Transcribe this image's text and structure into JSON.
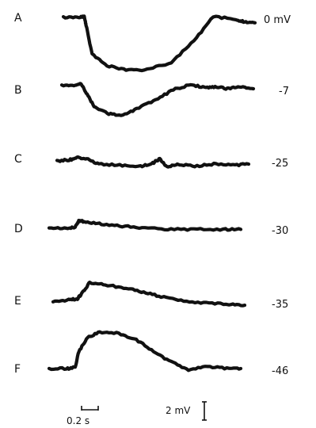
{
  "chart_data": {
    "type": "line",
    "title": "",
    "xlabel": "",
    "ylabel": "",
    "panels": [
      {
        "letter": "A",
        "voltage_label": "0 mV",
        "time_s": [
          0,
          0.18,
          0.24,
          0.26,
          0.33,
          0.5,
          0.72,
          0.96,
          1.24,
          1.5,
          1.72,
          1.98,
          2.08,
          2.2
        ],
        "response_mV": [
          0,
          0,
          0.1,
          -0.7,
          -3.4,
          -4.5,
          -4.9,
          -4.9,
          -4.2,
          -2.2,
          0.1,
          -0.2,
          -0.4,
          -0.5
        ]
      },
      {
        "letter": "B",
        "voltage_label": "-7",
        "time_s": [
          0,
          0.16,
          0.22,
          0.28,
          0.37,
          0.52,
          0.68,
          0.86,
          1.08,
          1.28,
          1.48,
          1.64,
          1.76,
          1.9,
          2.04,
          2.2
        ],
        "response_mV": [
          0.3,
          0.3,
          0.5,
          -0.4,
          -1.6,
          -2.3,
          -2.5,
          -1.9,
          -1.0,
          -0.1,
          0.4,
          0.1,
          0.2,
          0.0,
          0.2,
          0.0
        ]
      },
      {
        "letter": "C",
        "voltage_label": "-25",
        "time_s": [
          0,
          0.14,
          0.24,
          0.34,
          0.48,
          0.72,
          0.96,
          1.1,
          1.18,
          1.26,
          1.38,
          1.58,
          1.8,
          2.02,
          2.2
        ],
        "response_mV": [
          0.0,
          0.1,
          0.3,
          0.2,
          -0.3,
          -0.4,
          -0.5,
          -0.2,
          0.2,
          -0.6,
          -0.3,
          -0.5,
          -0.3,
          -0.4,
          -0.3
        ]
      },
      {
        "letter": "D",
        "voltage_label": "-30",
        "time_s": [
          0,
          0.2,
          0.3,
          0.34,
          0.42,
          0.6,
          0.84,
          1.1,
          1.4,
          1.7,
          2.0,
          2.2
        ],
        "response_mV": [
          0.0,
          0.0,
          0.1,
          0.7,
          0.6,
          0.4,
          0.2,
          0.0,
          -0.1,
          -0.1,
          -0.1,
          -0.1
        ]
      },
      {
        "letter": "E",
        "voltage_label": "-35",
        "time_s": [
          0,
          0.18,
          0.28,
          0.34,
          0.42,
          0.6,
          0.84,
          1.04,
          1.24,
          1.5,
          1.76,
          2.02,
          2.2
        ],
        "response_mV": [
          0.0,
          0.2,
          0.3,
          0.9,
          1.8,
          1.6,
          1.3,
          0.9,
          0.5,
          0.1,
          -0.1,
          -0.2,
          -0.3
        ]
      },
      {
        "letter": "F",
        "voltage_label": "-46",
        "time_s": [
          0,
          0.2,
          0.3,
          0.34,
          0.44,
          0.58,
          0.8,
          1.0,
          1.2,
          1.4,
          1.6,
          1.82,
          2.04,
          2.2
        ],
        "response_mV": [
          0.0,
          0.0,
          0.1,
          1.6,
          2.9,
          3.4,
          3.3,
          2.7,
          1.6,
          0.6,
          -0.1,
          0.2,
          0.0,
          0.0
        ]
      }
    ],
    "time_scale_label": "0.2 s",
    "time_scale_s": 0.2,
    "voltage_scale_label": "2 mV",
    "voltage_scale_mV": 2
  }
}
